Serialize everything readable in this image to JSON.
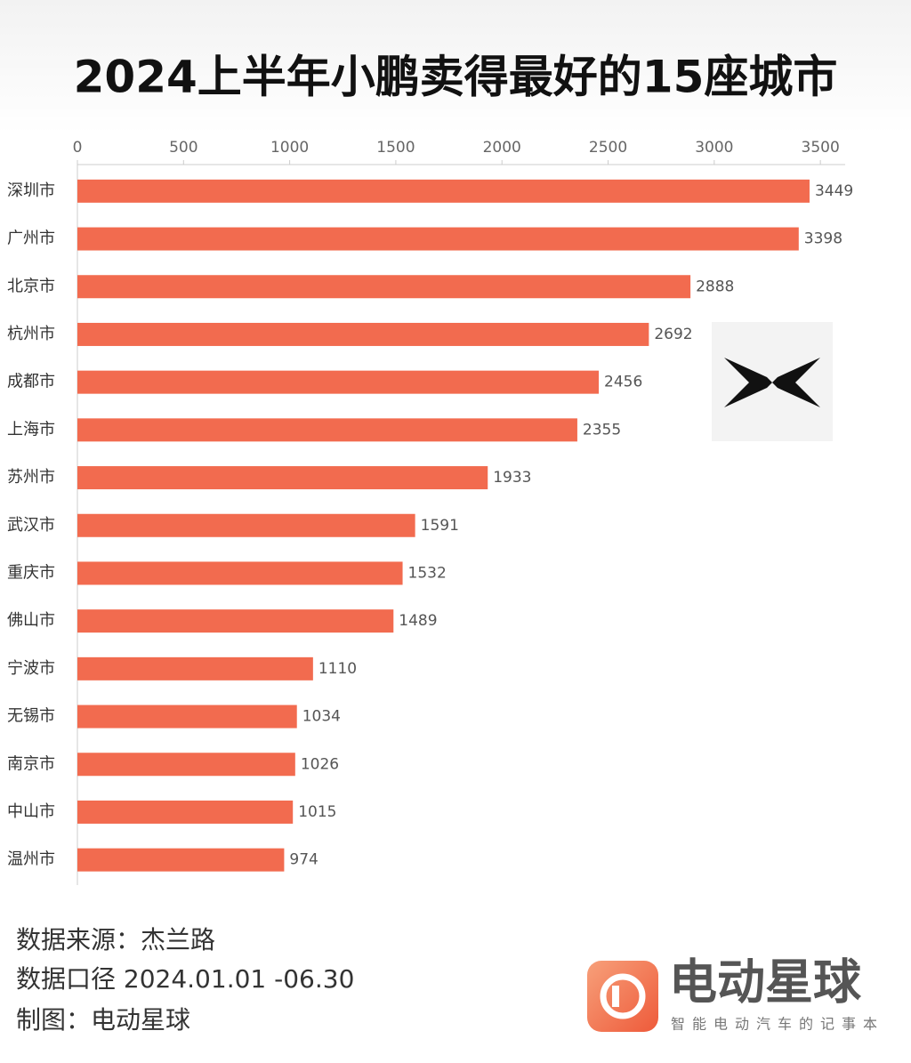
{
  "chart_data": {
    "type": "bar",
    "orientation": "horizontal",
    "title": "2024上半年小鹏卖得最好的15座城市",
    "categories": [
      "深圳市",
      "广州市",
      "北京市",
      "杭州市",
      "成都市",
      "上海市",
      "苏州市",
      "武汉市",
      "重庆市",
      "佛山市",
      "宁波市",
      "无锡市",
      "南京市",
      "中山市",
      "温州市"
    ],
    "values": [
      3449,
      3398,
      2888,
      2692,
      2456,
      2355,
      1933,
      1591,
      1532,
      1489,
      1110,
      1034,
      1026,
      1015,
      974
    ],
    "color": "#f26b4f",
    "xlim": [
      0,
      3600
    ],
    "xticks": [
      0,
      500,
      1000,
      1500,
      2000,
      2500,
      3000,
      3500
    ],
    "grid": false
  },
  "footer": {
    "source": "数据来源：杰兰路",
    "scope": "数据口径 2024.01.01 -06.30",
    "credit": "制图：电动星球"
  },
  "brand": {
    "name": "电动星球",
    "slogan": "智能电动汽车的记事本"
  }
}
